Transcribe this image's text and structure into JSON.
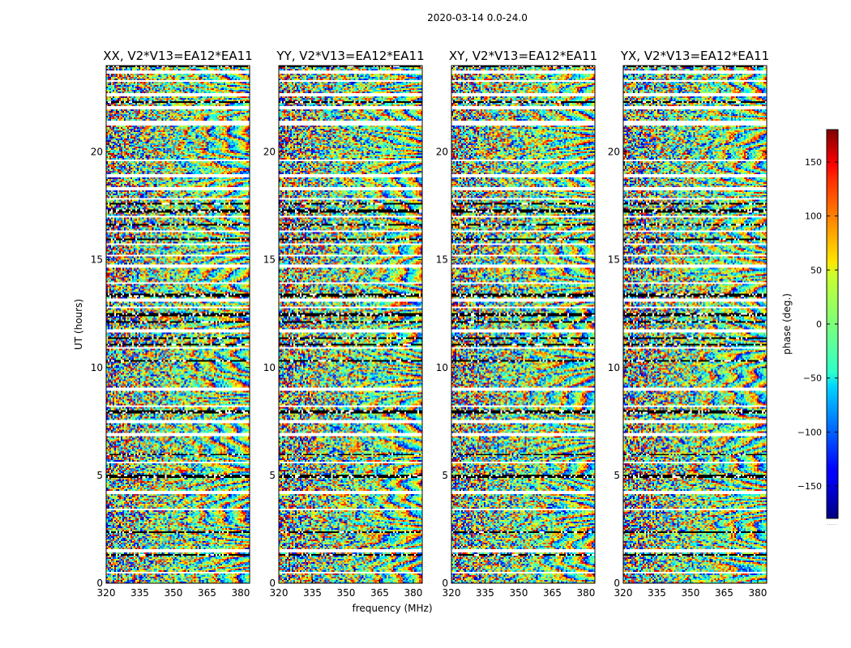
{
  "figure": {
    "suptitle": "2020-03-14 0.0-24.0",
    "footer_dots": "....."
  },
  "chart_data": {
    "type": "heatmap",
    "x_quantity": "frequency",
    "y_quantity": "UT",
    "z_quantity": "phase",
    "xlabel": "frequency (MHz)",
    "ylabel": "UT (hours)",
    "xlim": [
      320,
      384
    ],
    "ylim": [
      0,
      24
    ],
    "xticks": [
      320,
      335,
      350,
      365,
      380
    ],
    "yticks": [
      0,
      5,
      10,
      15,
      20
    ],
    "colorbar": {
      "label": "phase (deg.)",
      "colormap": "jet",
      "range": [
        -180,
        180
      ],
      "ticks": [
        -150,
        -100,
        -50,
        0,
        50,
        100,
        150
      ],
      "tick_labels": [
        "−150",
        "−100",
        "−50",
        "0",
        "50",
        "100",
        "150"
      ],
      "placement": "right"
    },
    "panels": [
      {
        "title": "XX, V2*V13=EA12*EA11",
        "polarization": "XX",
        "show_ylabel": true
      },
      {
        "title": "YY, V2*V13=EA12*EA11",
        "polarization": "YY",
        "show_xlabel": true
      },
      {
        "title": "XY, V2*V13=EA12*EA11",
        "polarization": "XY"
      },
      {
        "title": "YX, V2*V13=EA12*EA11",
        "polarization": "YX"
      }
    ],
    "blank_ut_bands": [
      [
        0.45,
        0.55
      ],
      [
        1.45,
        1.6
      ],
      [
        3.35,
        3.45
      ],
      [
        4.15,
        4.25
      ],
      [
        5.55,
        5.62
      ],
      [
        6.85,
        6.95
      ],
      [
        7.45,
        7.55
      ],
      [
        8.15,
        8.25
      ],
      [
        8.95,
        9.05
      ],
      [
        10.85,
        10.95
      ],
      [
        11.65,
        11.75
      ],
      [
        12.75,
        12.85
      ],
      [
        13.05,
        13.2
      ],
      [
        13.85,
        13.95
      ],
      [
        14.65,
        14.75
      ],
      [
        15.15,
        15.25
      ],
      [
        15.65,
        15.75
      ],
      [
        16.25,
        16.35
      ],
      [
        16.95,
        17.05
      ],
      [
        17.75,
        17.85
      ],
      [
        18.25,
        18.35
      ],
      [
        18.85,
        18.95
      ],
      [
        19.55,
        19.65
      ],
      [
        21.25,
        21.45
      ],
      [
        21.95,
        22.1
      ],
      [
        22.6,
        22.7
      ],
      [
        23.25,
        23.35
      ],
      [
        23.65,
        23.75
      ]
    ],
    "black_ut_bands": [
      [
        1.28,
        1.32
      ],
      [
        2.35,
        2.4
      ],
      [
        4.9,
        5.0
      ],
      [
        5.92,
        5.97
      ],
      [
        7.9,
        8.02
      ],
      [
        9.2,
        9.25
      ],
      [
        10.3,
        10.35
      ],
      [
        11.05,
        11.1
      ],
      [
        11.3,
        11.4
      ],
      [
        11.9,
        11.95
      ],
      [
        12.1,
        12.17
      ],
      [
        12.4,
        12.5
      ],
      [
        13.25,
        13.45
      ],
      [
        13.55,
        13.6
      ],
      [
        15.9,
        15.95
      ],
      [
        16.6,
        16.65
      ],
      [
        17.2,
        17.3
      ],
      [
        17.55,
        17.62
      ],
      [
        19.1,
        19.15
      ],
      [
        20.6,
        20.65
      ],
      [
        22.25,
        22.35
      ],
      [
        23.9,
        24.0
      ]
    ]
  }
}
